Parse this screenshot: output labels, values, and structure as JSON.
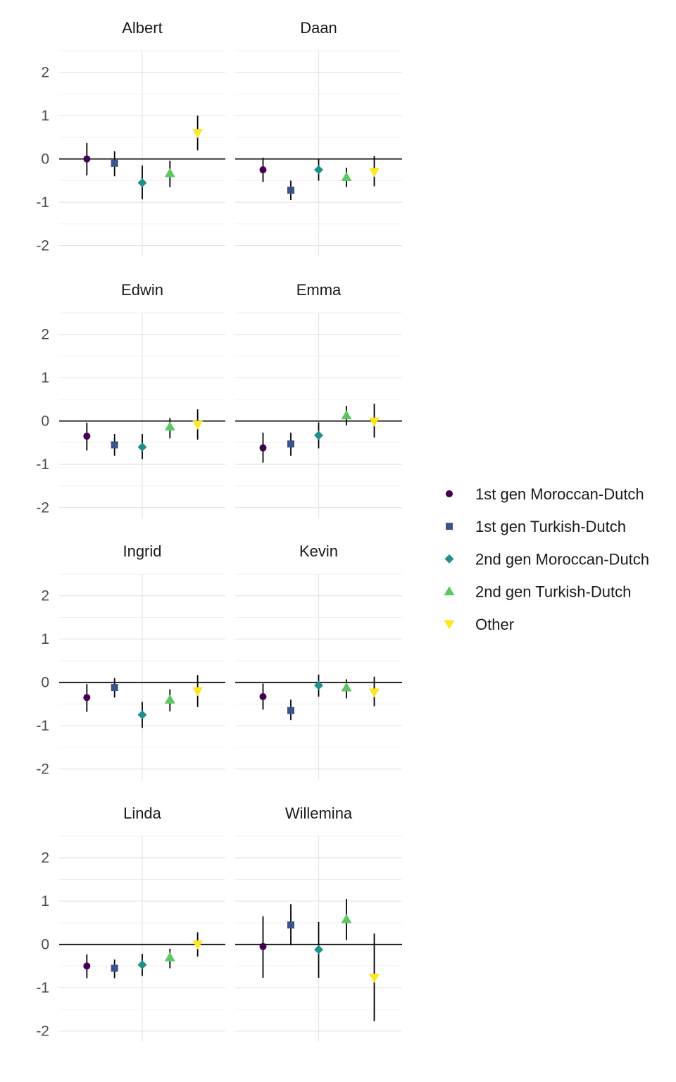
{
  "chart_data": {
    "type": "scatter",
    "subtype": "point-range faceted",
    "layout": "4 rows x 2 columns",
    "ylim": [
      -2.25,
      2.5
    ],
    "y_ticks": [
      "2",
      "1",
      "0",
      "-1",
      "-2"
    ],
    "y_tick_values": [
      2,
      1,
      0,
      -1,
      -2
    ],
    "reference_line": 0,
    "grid": true,
    "legend_position": "right",
    "groups": [
      {
        "name": "1st gen Moroccan-Dutch",
        "shape": "circle",
        "color": "#440154"
      },
      {
        "name": "1st gen Turkish-Dutch",
        "shape": "square",
        "color": "#3B528B"
      },
      {
        "name": "2nd gen Moroccan-Dutch",
        "shape": "diamond",
        "color": "#21908C"
      },
      {
        "name": "2nd gen Turkish-Dutch",
        "shape": "triangle-up",
        "color": "#5DC863"
      },
      {
        "name": "Other",
        "shape": "triangle-down",
        "color": "#FDE725"
      }
    ],
    "panels": [
      {
        "name": "Albert",
        "points": [
          {
            "y": 0.0,
            "lo": -0.38,
            "hi": 0.37
          },
          {
            "y": -0.1,
            "lo": -0.4,
            "hi": 0.18
          },
          {
            "y": -0.55,
            "lo": -0.93,
            "hi": -0.15
          },
          {
            "y": -0.33,
            "lo": -0.65,
            "hi": -0.04
          },
          {
            "y": 0.6,
            "lo": 0.2,
            "hi": 1.0
          }
        ]
      },
      {
        "name": "Daan",
        "points": [
          {
            "y": -0.25,
            "lo": -0.53,
            "hi": 0.03
          },
          {
            "y": -0.72,
            "lo": -0.95,
            "hi": -0.5
          },
          {
            "y": -0.25,
            "lo": -0.5,
            "hi": 0.0
          },
          {
            "y": -0.42,
            "lo": -0.65,
            "hi": -0.2
          },
          {
            "y": -0.3,
            "lo": -0.63,
            "hi": 0.07
          }
        ]
      },
      {
        "name": "Edwin",
        "points": [
          {
            "y": -0.35,
            "lo": -0.68,
            "hi": -0.04
          },
          {
            "y": -0.55,
            "lo": -0.8,
            "hi": -0.3
          },
          {
            "y": -0.6,
            "lo": -0.88,
            "hi": -0.3
          },
          {
            "y": -0.13,
            "lo": -0.4,
            "hi": 0.07
          },
          {
            "y": -0.08,
            "lo": -0.43,
            "hi": 0.27
          }
        ]
      },
      {
        "name": "Emma",
        "points": [
          {
            "y": -0.62,
            "lo": -0.96,
            "hi": -0.27
          },
          {
            "y": -0.53,
            "lo": -0.8,
            "hi": -0.27
          },
          {
            "y": -0.33,
            "lo": -0.63,
            "hi": -0.03
          },
          {
            "y": 0.13,
            "lo": -0.1,
            "hi": 0.35
          },
          {
            "y": -0.01,
            "lo": -0.38,
            "hi": 0.4
          }
        ]
      },
      {
        "name": "Ingrid",
        "points": [
          {
            "y": -0.35,
            "lo": -0.68,
            "hi": -0.04
          },
          {
            "y": -0.12,
            "lo": -0.35,
            "hi": 0.1
          },
          {
            "y": -0.75,
            "lo": -1.05,
            "hi": -0.45
          },
          {
            "y": -0.4,
            "lo": -0.67,
            "hi": -0.16
          },
          {
            "y": -0.2,
            "lo": -0.57,
            "hi": 0.17
          }
        ]
      },
      {
        "name": "Kevin",
        "points": [
          {
            "y": -0.33,
            "lo": -0.63,
            "hi": -0.03
          },
          {
            "y": -0.65,
            "lo": -0.87,
            "hi": -0.4
          },
          {
            "y": -0.07,
            "lo": -0.33,
            "hi": 0.18
          },
          {
            "y": -0.12,
            "lo": -0.37,
            "hi": 0.07
          },
          {
            "y": -0.23,
            "lo": -0.55,
            "hi": 0.13
          }
        ]
      },
      {
        "name": "Linda",
        "points": [
          {
            "y": -0.5,
            "lo": -0.78,
            "hi": -0.23
          },
          {
            "y": -0.55,
            "lo": -0.78,
            "hi": -0.35
          },
          {
            "y": -0.47,
            "lo": -0.73,
            "hi": -0.22
          },
          {
            "y": -0.3,
            "lo": -0.55,
            "hi": -0.1
          },
          {
            "y": 0.0,
            "lo": -0.28,
            "hi": 0.28
          }
        ]
      },
      {
        "name": "Willemina",
        "points": [
          {
            "y": -0.05,
            "lo": -0.77,
            "hi": 0.65
          },
          {
            "y": 0.45,
            "lo": -0.02,
            "hi": 0.93
          },
          {
            "y": -0.12,
            "lo": -0.77,
            "hi": 0.52
          },
          {
            "y": 0.58,
            "lo": 0.1,
            "hi": 1.05
          },
          {
            "y": -0.77,
            "lo": -1.77,
            "hi": 0.25
          }
        ]
      }
    ]
  }
}
